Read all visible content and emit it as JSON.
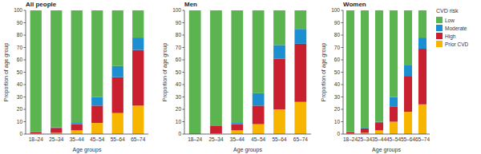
{
  "chart_data": [
    {
      "type": "bar",
      "stacked": true,
      "title": "All people",
      "x_label": "Age groups",
      "y_label": "Proportion of age group",
      "categories": [
        "18–24",
        "25–34",
        "35–44",
        "45–54",
        "55–64",
        "65–74"
      ],
      "ylim": [
        0,
        100
      ],
      "yticks": [
        0,
        10,
        20,
        30,
        40,
        50,
        60,
        70,
        80,
        90,
        100
      ],
      "grid": false,
      "series": [
        {
          "name": "Prior CVD",
          "color": "#f7b500",
          "values": [
            0.5,
            1,
            3,
            9,
            17,
            23
          ]
        },
        {
          "name": "High",
          "color": "#c8202f",
          "values": [
            1,
            4,
            5,
            14,
            29,
            45
          ]
        },
        {
          "name": "Moderate",
          "color": "#1b8fd0",
          "values": [
            0.5,
            0.5,
            1,
            7,
            9,
            10
          ]
        },
        {
          "name": "Low",
          "color": "#5bb450",
          "values": [
            98,
            94.5,
            91,
            70,
            45,
            22
          ]
        }
      ]
    },
    {
      "type": "bar",
      "stacked": true,
      "title": "Men",
      "x_label": "Age groups",
      "y_label": "Proportion of age group",
      "categories": [
        "18–24",
        "25–34",
        "35–44",
        "45–54",
        "55–64",
        "65–74"
      ],
      "ylim": [
        0,
        100
      ],
      "yticks": [
        0,
        10,
        20,
        30,
        40,
        50,
        60,
        70,
        80,
        90,
        100
      ],
      "grid": false,
      "series": [
        {
          "name": "Prior CVD",
          "color": "#f7b500",
          "values": [
            0,
            0.5,
            3,
            8,
            20,
            26
          ]
        },
        {
          "name": "High",
          "color": "#c8202f",
          "values": [
            0,
            6,
            5,
            15,
            41,
            47
          ]
        },
        {
          "name": "Moderate",
          "color": "#1b8fd0",
          "values": [
            0,
            0.5,
            1,
            10,
            11,
            12
          ]
        },
        {
          "name": "Low",
          "color": "#5bb450",
          "values": [
            100,
            93,
            91,
            67,
            28,
            15
          ]
        }
      ]
    },
    {
      "type": "bar",
      "stacked": true,
      "title": "Women",
      "x_label": "Age groups",
      "y_label": "Proportion of age group",
      "categories": [
        "18–24",
        "25–34",
        "35–44",
        "45–54",
        "55–64",
        "65–74"
      ],
      "ylim": [
        0,
        100
      ],
      "yticks": [
        0,
        10,
        20,
        30,
        40,
        50,
        60,
        70,
        80,
        90,
        100
      ],
      "grid": false,
      "legend": "right",
      "legend_title": "CVD risk",
      "series": [
        {
          "name": "Prior CVD",
          "color": "#f7b500",
          "values": [
            0.5,
            1,
            3,
            10,
            18,
            24
          ]
        },
        {
          "name": "High",
          "color": "#c8202f",
          "values": [
            1,
            3.5,
            6,
            12,
            29,
            45
          ]
        },
        {
          "name": "Moderate",
          "color": "#1b8fd0",
          "values": [
            0.5,
            0.5,
            1,
            8,
            9,
            9
          ]
        },
        {
          "name": "Low",
          "color": "#5bb450",
          "values": [
            98,
            95,
            90,
            70,
            44,
            22
          ]
        }
      ]
    }
  ]
}
